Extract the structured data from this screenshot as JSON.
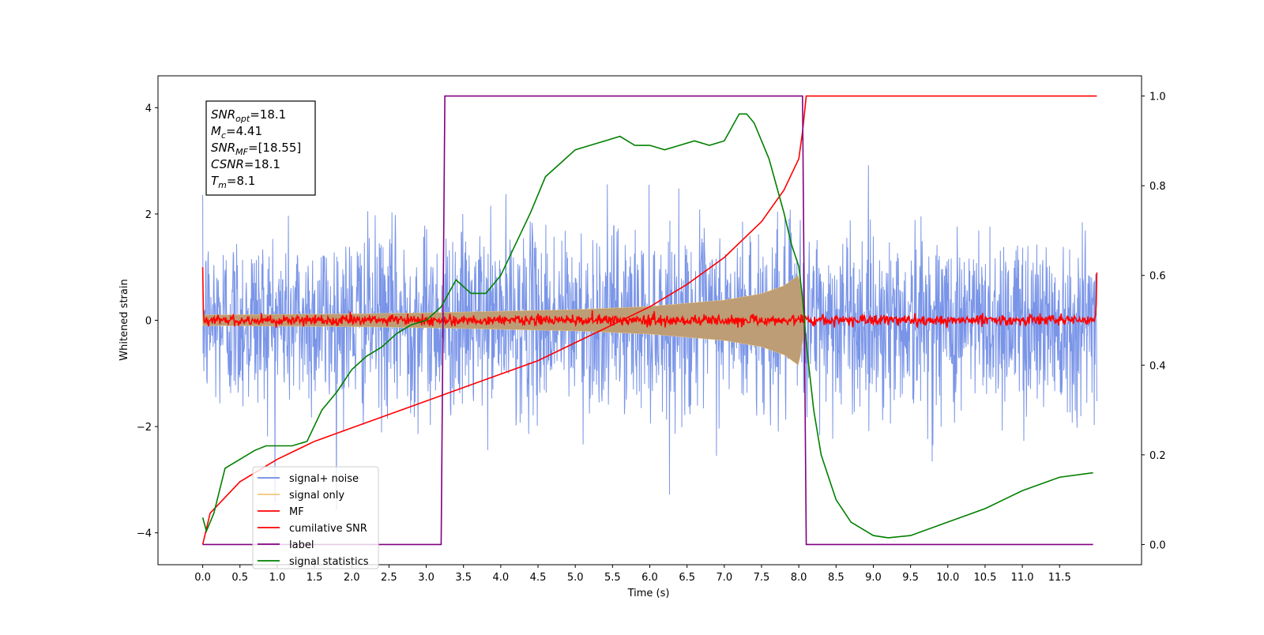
{
  "chart_data": {
    "type": "line",
    "xlabel": "Time (s)",
    "ylabel_left": "Whitened strain",
    "ylabel_right": "",
    "xlim": [
      -0.6,
      12.6
    ],
    "ylim_left": [
      -4.6,
      4.6
    ],
    "ylim_right": [
      -0.045,
      1.045
    ],
    "x_ticks": [
      0.0,
      0.5,
      1.0,
      1.5,
      2.0,
      2.5,
      3.0,
      3.5,
      4.0,
      4.5,
      5.0,
      5.5,
      6.0,
      6.5,
      7.0,
      7.5,
      8.0,
      8.5,
      9.0,
      9.5,
      10.0,
      10.5,
      11.0,
      11.5
    ],
    "x_tick_labels": [
      "0.0",
      "0.5",
      "1.0",
      "1.5",
      "2.0",
      "2.5",
      "3.0",
      "3.5",
      "4.0",
      "4.5",
      "5.0",
      "5.5",
      "6.0",
      "6.5",
      "7.0",
      "7.5",
      "8.0",
      "8.5",
      "9.0",
      "9.5",
      "10.0",
      "10.5",
      "11.0",
      "11.5"
    ],
    "y_left_ticks": [
      -4,
      -2,
      0,
      2,
      4
    ],
    "y_left_tick_labels": [
      "−4",
      "−2",
      "0",
      "2",
      "4"
    ],
    "y_right_ticks": [
      0.0,
      0.2,
      0.4,
      0.6,
      0.8,
      1.0
    ],
    "y_right_tick_labels": [
      "0.0",
      "0.2",
      "0.4",
      "0.6",
      "0.8",
      "1.0"
    ],
    "grid": false,
    "legend_position": "bottom-left",
    "annotation": {
      "lines": [
        {
          "base": "SNR",
          "sub": "opt",
          "rest": "=18.1"
        },
        {
          "base": "M",
          "sub": "c",
          "rest": "=4.41"
        },
        {
          "base": "SNR",
          "sub": "MF",
          "rest": "=[18.55]"
        },
        {
          "base": "CSNR",
          "sub": "",
          "rest": "=18.1"
        },
        {
          "base": "T",
          "sub": "m",
          "rest": "=8.1"
        }
      ]
    },
    "series": [
      {
        "name": "signal+ noise",
        "axis": "left",
        "color": "#6b89e6",
        "description_kind": "noise",
        "x_range": [
          0.0,
          12.0
        ],
        "sigma": 0.85,
        "peak_extent": 4.0
      },
      {
        "name": "signal only",
        "axis": "left",
        "color": "#f2c879",
        "fill_color": "#bd9d75",
        "description_kind": "chirp",
        "x_range": [
          0.0,
          8.1
        ],
        "envelope": {
          "x": [
            0.0,
            1.0,
            2.0,
            3.0,
            4.0,
            5.0,
            6.0,
            7.0,
            7.5,
            7.8,
            8.0,
            8.1
          ],
          "y": [
            0.1,
            0.11,
            0.12,
            0.14,
            0.17,
            0.2,
            0.26,
            0.38,
            0.5,
            0.65,
            0.85,
            0.0
          ]
        }
      },
      {
        "name": "MF",
        "axis": "left",
        "color": "#ff0000",
        "description_kind": "noise",
        "x_range": [
          0.0,
          12.0
        ],
        "sigma": 0.05,
        "edge_values": [
          1.0,
          0.9
        ]
      },
      {
        "name": "cumilative SNR",
        "axis": "right",
        "color": "#ff0000",
        "x": [
          0.0,
          0.1,
          0.5,
          1.0,
          1.5,
          2.0,
          2.5,
          3.0,
          3.5,
          4.0,
          4.5,
          5.0,
          5.5,
          6.0,
          6.5,
          7.0,
          7.5,
          7.8,
          8.0,
          8.05,
          8.1,
          12.0
        ],
        "y": [
          0.0,
          0.07,
          0.14,
          0.19,
          0.23,
          0.26,
          0.29,
          0.32,
          0.35,
          0.38,
          0.41,
          0.45,
          0.49,
          0.53,
          0.58,
          0.64,
          0.72,
          0.79,
          0.86,
          0.92,
          1.0,
          1.0
        ]
      },
      {
        "name": "label",
        "axis": "right",
        "color": "#800080",
        "x": [
          0.0,
          3.2,
          3.25,
          8.05,
          8.1,
          11.95
        ],
        "y": [
          0.0,
          0.0,
          1.0,
          1.0,
          0.0,
          0.0
        ]
      },
      {
        "name": "signal statistics",
        "axis": "right",
        "color": "#008000",
        "x": [
          0.0,
          0.05,
          0.15,
          0.3,
          0.5,
          0.7,
          0.85,
          1.0,
          1.2,
          1.4,
          1.6,
          1.8,
          2.0,
          2.2,
          2.4,
          2.6,
          2.8,
          3.0,
          3.2,
          3.4,
          3.6,
          3.8,
          4.0,
          4.2,
          4.4,
          4.6,
          4.8,
          5.0,
          5.2,
          5.4,
          5.6,
          5.8,
          6.0,
          6.2,
          6.4,
          6.6,
          6.8,
          7.0,
          7.2,
          7.3,
          7.4,
          7.5,
          7.6,
          7.7,
          7.8,
          7.9,
          8.0,
          8.05,
          8.1,
          8.2,
          8.3,
          8.5,
          8.7,
          9.0,
          9.2,
          9.5,
          10.0,
          10.5,
          11.0,
          11.5,
          11.95
        ],
        "y": [
          0.06,
          0.03,
          0.07,
          0.17,
          0.19,
          0.21,
          0.22,
          0.22,
          0.22,
          0.23,
          0.3,
          0.34,
          0.39,
          0.42,
          0.44,
          0.47,
          0.49,
          0.5,
          0.53,
          0.59,
          0.56,
          0.56,
          0.6,
          0.67,
          0.74,
          0.82,
          0.85,
          0.88,
          0.89,
          0.9,
          0.91,
          0.89,
          0.89,
          0.88,
          0.89,
          0.9,
          0.89,
          0.9,
          0.96,
          0.96,
          0.94,
          0.9,
          0.86,
          0.8,
          0.74,
          0.67,
          0.62,
          0.55,
          0.45,
          0.3,
          0.2,
          0.1,
          0.05,
          0.02,
          0.015,
          0.02,
          0.05,
          0.08,
          0.12,
          0.15,
          0.16
        ]
      }
    ]
  }
}
